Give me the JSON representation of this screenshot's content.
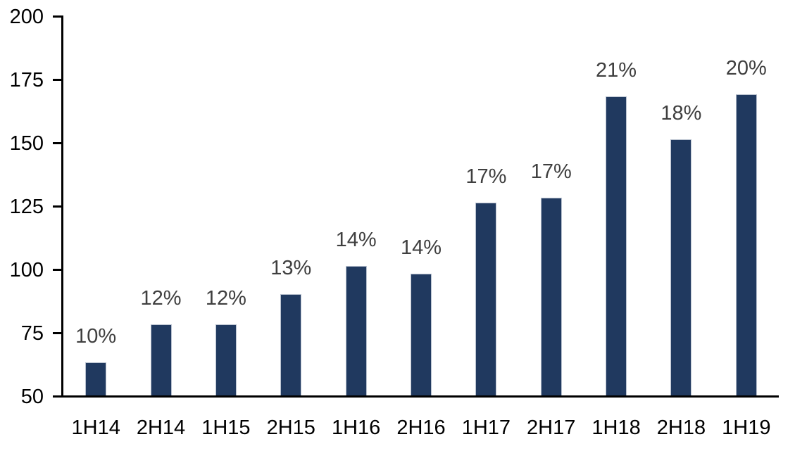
{
  "chart_data": {
    "type": "bar",
    "categories": [
      "1H14",
      "2H14",
      "1H15",
      "2H15",
      "1H16",
      "2H16",
      "1H17",
      "2H17",
      "1H18",
      "2H18",
      "1H19"
    ],
    "values": [
      63,
      78,
      78,
      90,
      101,
      98,
      126,
      128,
      168,
      151,
      169
    ],
    "data_labels": [
      "10%",
      "12%",
      "12%",
      "13%",
      "14%",
      "14%",
      "17%",
      "17%",
      "21%",
      "18%",
      "20%"
    ],
    "title": "",
    "xlabel": "",
    "ylabel": "",
    "ylim": [
      50,
      200
    ],
    "y_ticks": [
      50,
      75,
      100,
      125,
      150,
      175,
      200
    ],
    "grid": false,
    "legend": "none",
    "colors": {
      "bar_fill": "#20395f",
      "bar_border": "#b7c0ce",
      "axis_line": "#000000",
      "tick_label": "#000000",
      "data_label": "#3f3f3f",
      "background": "#ffffff"
    }
  }
}
